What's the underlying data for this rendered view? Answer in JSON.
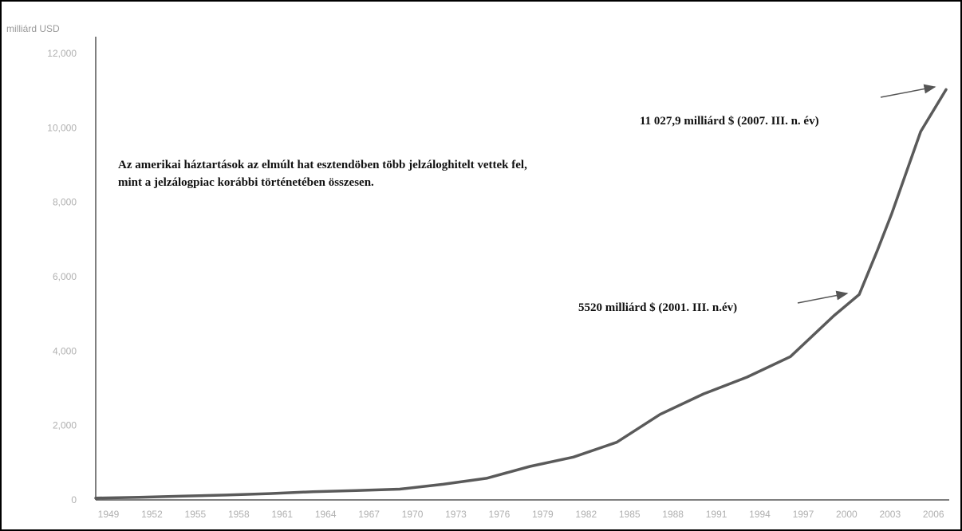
{
  "chart_data": {
    "type": "line",
    "title": "",
    "xlabel": "",
    "ylabel": "milliárd USD",
    "xlim": [
      1949,
      2007.75
    ],
    "ylim": [
      0,
      12000
    ],
    "grid": false,
    "y_ticks": [
      {
        "value": 0,
        "label": "0"
      },
      {
        "value": 2000,
        "label": "2,000"
      },
      {
        "value": 4000,
        "label": "4,000"
      },
      {
        "value": 6000,
        "label": "6,000"
      },
      {
        "value": 8000,
        "label": "8,000"
      },
      {
        "value": 10000,
        "label": "10,000"
      },
      {
        "value": 12000,
        "label": "12,000"
      }
    ],
    "x_ticks": [
      "1949",
      "1952",
      "1955",
      "1958",
      "1961",
      "1964",
      "1967",
      "1970",
      "1973",
      "1976",
      "1979",
      "1982",
      "1985",
      "1988",
      "1991",
      "1994",
      "1997",
      "2000",
      "2003",
      "2006"
    ],
    "series": [
      {
        "color": "#5a5a5a",
        "x": [
          1949,
          1952,
          1955,
          1958,
          1961,
          1964,
          1967,
          1970,
          1973,
          1976,
          1979,
          1982,
          1985,
          1988,
          1991,
          1994,
          1997,
          2000,
          2001.75,
          2003,
          2004,
          2005,
          2006,
          2007.75
        ],
        "y": [
          50,
          70,
          100,
          130,
          170,
          220,
          250,
          290,
          420,
          580,
          900,
          1150,
          1550,
          2300,
          2850,
          3300,
          3850,
          4950,
          5520,
          6700,
          7700,
          8800,
          9900,
          11027.9
        ]
      }
    ],
    "annotations": {
      "note_line1": "Az amerikai háztartások az elmúlt hat esztendöben több jelzáloghitelt vettek fel,",
      "note_line2": "mint a jelzálogpiac korábbi történetében összesen.",
      "label_2001": "5520 milliárd $ (2001. III. n.év)",
      "label_2007": "11 027,9 milliárd $ (2007. III. n. év)"
    }
  }
}
